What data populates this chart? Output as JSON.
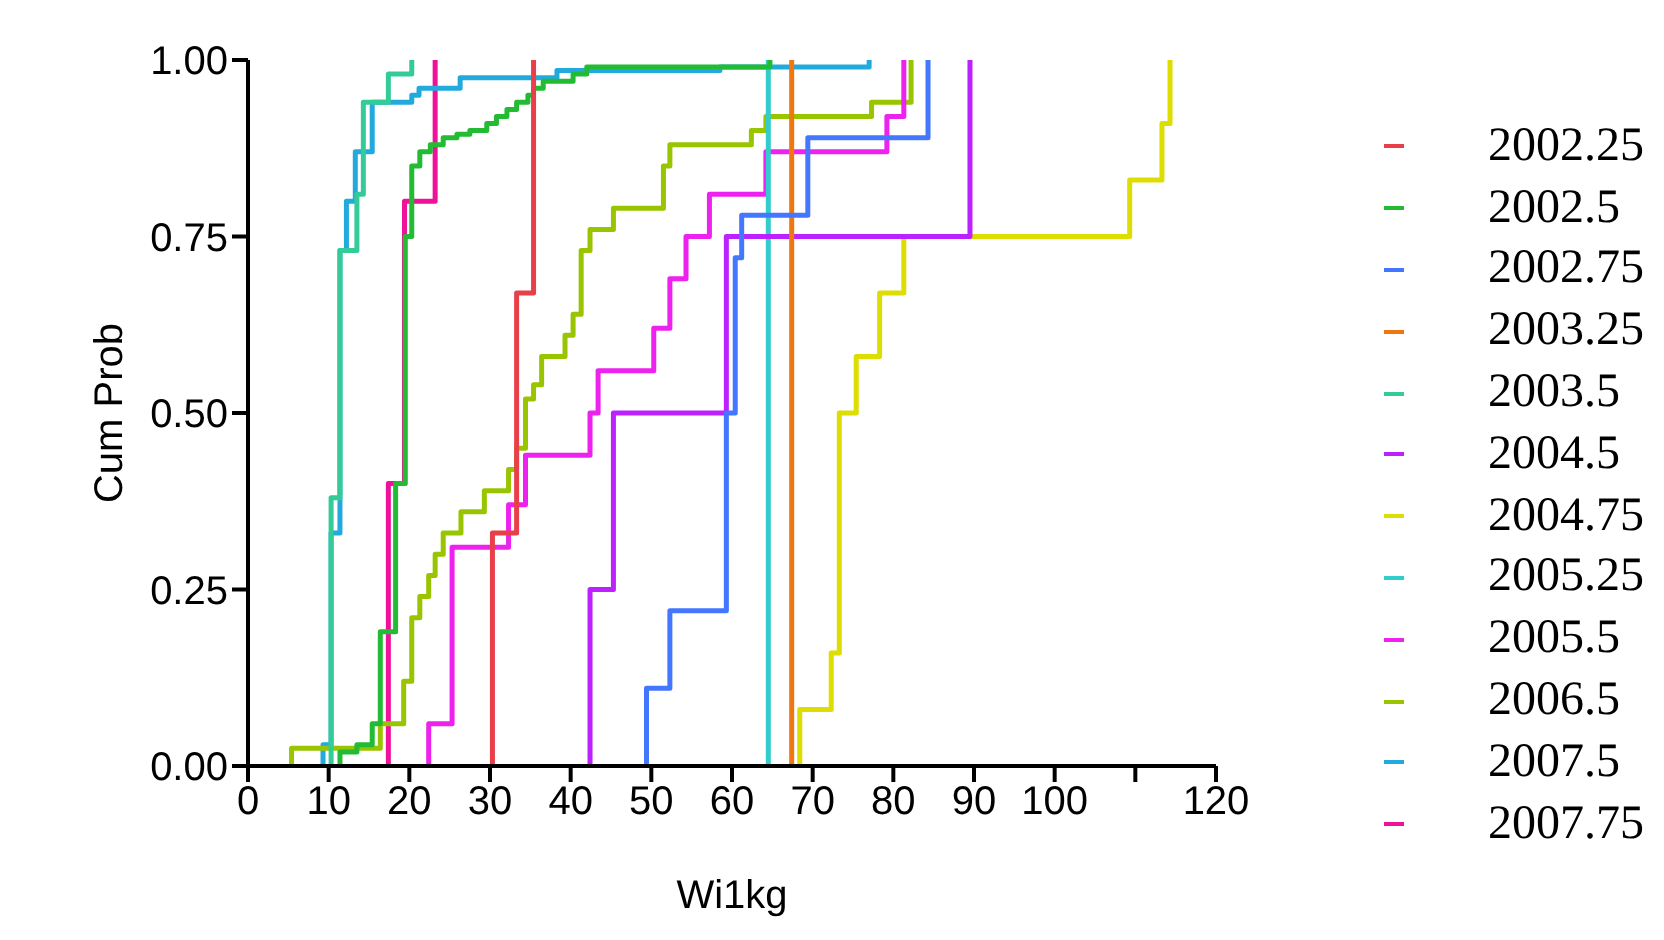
{
  "chart_data": {
    "type": "step",
    "xlabel": "Wi1kg",
    "ylabel": "Cum Prob",
    "xlim": [
      0,
      120
    ],
    "ylim": [
      0,
      1
    ],
    "xticks": [
      0,
      10,
      20,
      30,
      40,
      50,
      60,
      70,
      80,
      90,
      100,
      {
        "value": 110,
        "label": null
      },
      120
    ],
    "yticks": [
      {
        "value": 0,
        "label": "0.00"
      },
      {
        "value": 0.25,
        "label": "0.25"
      },
      {
        "value": 0.5,
        "label": "0.50"
      },
      {
        "value": 0.75,
        "label": "0.75"
      },
      {
        "value": 1,
        "label": "1.00"
      }
    ],
    "grid": false,
    "legend": "right",
    "marker": "none",
    "line_style": "solid",
    "series": [
      {
        "name": "2002.25",
        "color": "#e8404a",
        "x": [
          30.3,
          30.3,
          33.3,
          35.4
        ],
        "values": [
          0,
          0.33,
          0.67,
          1
        ]
      },
      {
        "name": "2002.5",
        "color": "#22bb33",
        "x": [
          11.4,
          11.4,
          13.5,
          15.4,
          16.4,
          18.3,
          19.5,
          20.3,
          21.3,
          22.6,
          24.2,
          25.9,
          27.5,
          29.6,
          30.8,
          32.1,
          33.3,
          34.7,
          35.4,
          36.6,
          40.3,
          42,
          64.7
        ],
        "values": [
          0,
          0.02,
          0.03,
          0.06,
          0.19,
          0.4,
          0.75,
          0.85,
          0.87,
          0.88,
          0.89,
          0.895,
          0.9,
          0.91,
          0.92,
          0.93,
          0.94,
          0.95,
          0.96,
          0.97,
          0.98,
          0.99,
          1
        ]
      },
      {
        "name": "2002.75",
        "color": "#4477ff",
        "x": [
          49.4,
          49.4,
          52.3,
          59.3,
          60.4,
          61.2,
          69.4,
          84.3
        ],
        "values": [
          0,
          0.11,
          0.22,
          0.5,
          0.72,
          0.78,
          0.89,
          1
        ]
      },
      {
        "name": "2003.25",
        "color": "#ee7711",
        "x": [
          67.4,
          67.4
        ],
        "values": [
          0,
          1
        ]
      },
      {
        "name": "2003.5",
        "color": "#33cc99",
        "x": [
          10.3,
          10.3,
          11.4,
          13.5,
          14.3,
          17.4,
          20.3
        ],
        "values": [
          0,
          0.38,
          0.73,
          0.81,
          0.94,
          0.98,
          1
        ]
      },
      {
        "name": "2004.5",
        "color": "#bb22ff",
        "x": [
          42.4,
          42.4,
          45.3,
          59.3,
          89.5
        ],
        "values": [
          0,
          0.25,
          0.5,
          0.75,
          1
        ]
      },
      {
        "name": "2004.75",
        "color": "#dddd00",
        "x": [
          68.4,
          68.4,
          72.3,
          73.3,
          75.4,
          78.3,
          81.3,
          109.3,
          113.3,
          114.3
        ],
        "values": [
          0,
          0.08,
          0.16,
          0.5,
          0.58,
          0.67,
          0.75,
          0.83,
          0.91,
          1
        ]
      },
      {
        "name": "2005.25",
        "color": "#33cccc",
        "x": [
          64.5,
          64.5
        ],
        "values": [
          0,
          1
        ]
      },
      {
        "name": "2005.5",
        "color": "#ee22ee",
        "x": [
          22.4,
          22.4,
          25.3,
          32.3,
          34.4,
          42.4,
          43.4,
          50.3,
          52.3,
          54.3,
          57.2,
          64.2,
          79.2,
          81.3
        ],
        "values": [
          0,
          0.06,
          0.31,
          0.37,
          0.44,
          0.5,
          0.56,
          0.62,
          0.69,
          0.75,
          0.81,
          0.87,
          0.92,
          1
        ]
      },
      {
        "name": "2006.5",
        "color": "#99c400",
        "x": [
          5.4,
          5.4,
          16.4,
          19.3,
          20.3,
          21.3,
          22.4,
          23.2,
          24.2,
          26.4,
          29.3,
          32.3,
          33.3,
          34.4,
          35.4,
          36.4,
          39.3,
          40.3,
          41.3,
          42.4,
          45.3,
          51.5,
          52.3,
          62.4,
          64.2,
          77.3,
          82.2
        ],
        "values": [
          0,
          0.025,
          0.06,
          0.12,
          0.21,
          0.24,
          0.27,
          0.3,
          0.33,
          0.36,
          0.39,
          0.42,
          0.45,
          0.52,
          0.54,
          0.58,
          0.61,
          0.64,
          0.73,
          0.76,
          0.79,
          0.85,
          0.88,
          0.9,
          0.92,
          0.94,
          1
        ]
      },
      {
        "name": "2007.5",
        "color": "#22aadd",
        "x": [
          9.3,
          9.3,
          10.3,
          11.4,
          12.2,
          13.3,
          15.4,
          20.3,
          21.2,
          26.3,
          38.3,
          58.5,
          77
        ],
        "values": [
          0,
          0.03,
          0.33,
          0.73,
          0.8,
          0.87,
          0.94,
          0.95,
          0.96,
          0.975,
          0.985,
          0.99,
          1
        ]
      },
      {
        "name": "2007.75",
        "color": "#ee1199",
        "x": [
          17.4,
          17.4,
          19.4,
          23.2
        ],
        "values": [
          0,
          0.4,
          0.8,
          1
        ]
      }
    ]
  }
}
